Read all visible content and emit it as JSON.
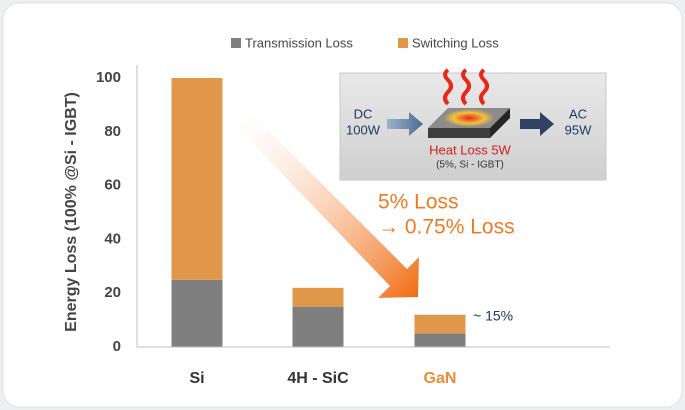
{
  "chart_data": {
    "type": "stacked_bar",
    "y_label": "Energy Loss (100% @Si - IGBT)",
    "categories": [
      "Si",
      "4H - SiC",
      "GaN"
    ],
    "category_label_colors": [
      "#333333",
      "#333333",
      "#ef8a35"
    ],
    "series": [
      {
        "name": "Transmission Loss",
        "color": "#7f7f7f",
        "values": [
          25,
          15,
          5
        ]
      },
      {
        "name": "Switching Loss",
        "color": "#e0974a",
        "values": [
          75,
          7,
          7
        ]
      }
    ],
    "ylim": [
      0,
      100
    ],
    "yticks": [
      0,
      20,
      40,
      60,
      80,
      100
    ],
    "grid": false,
    "legend": "top",
    "annotations": {
      "loss_before": "5% Loss",
      "loss_after": "→ 0.75% Loss",
      "gan_share": "~ 15%",
      "inset": {
        "input_label": "DC",
        "input_power": "100W",
        "output_label": "AC",
        "output_power": "95W",
        "heat_loss": "Heat Loss 5W",
        "heat_note": "(5%, Si - IGBT)"
      }
    }
  }
}
